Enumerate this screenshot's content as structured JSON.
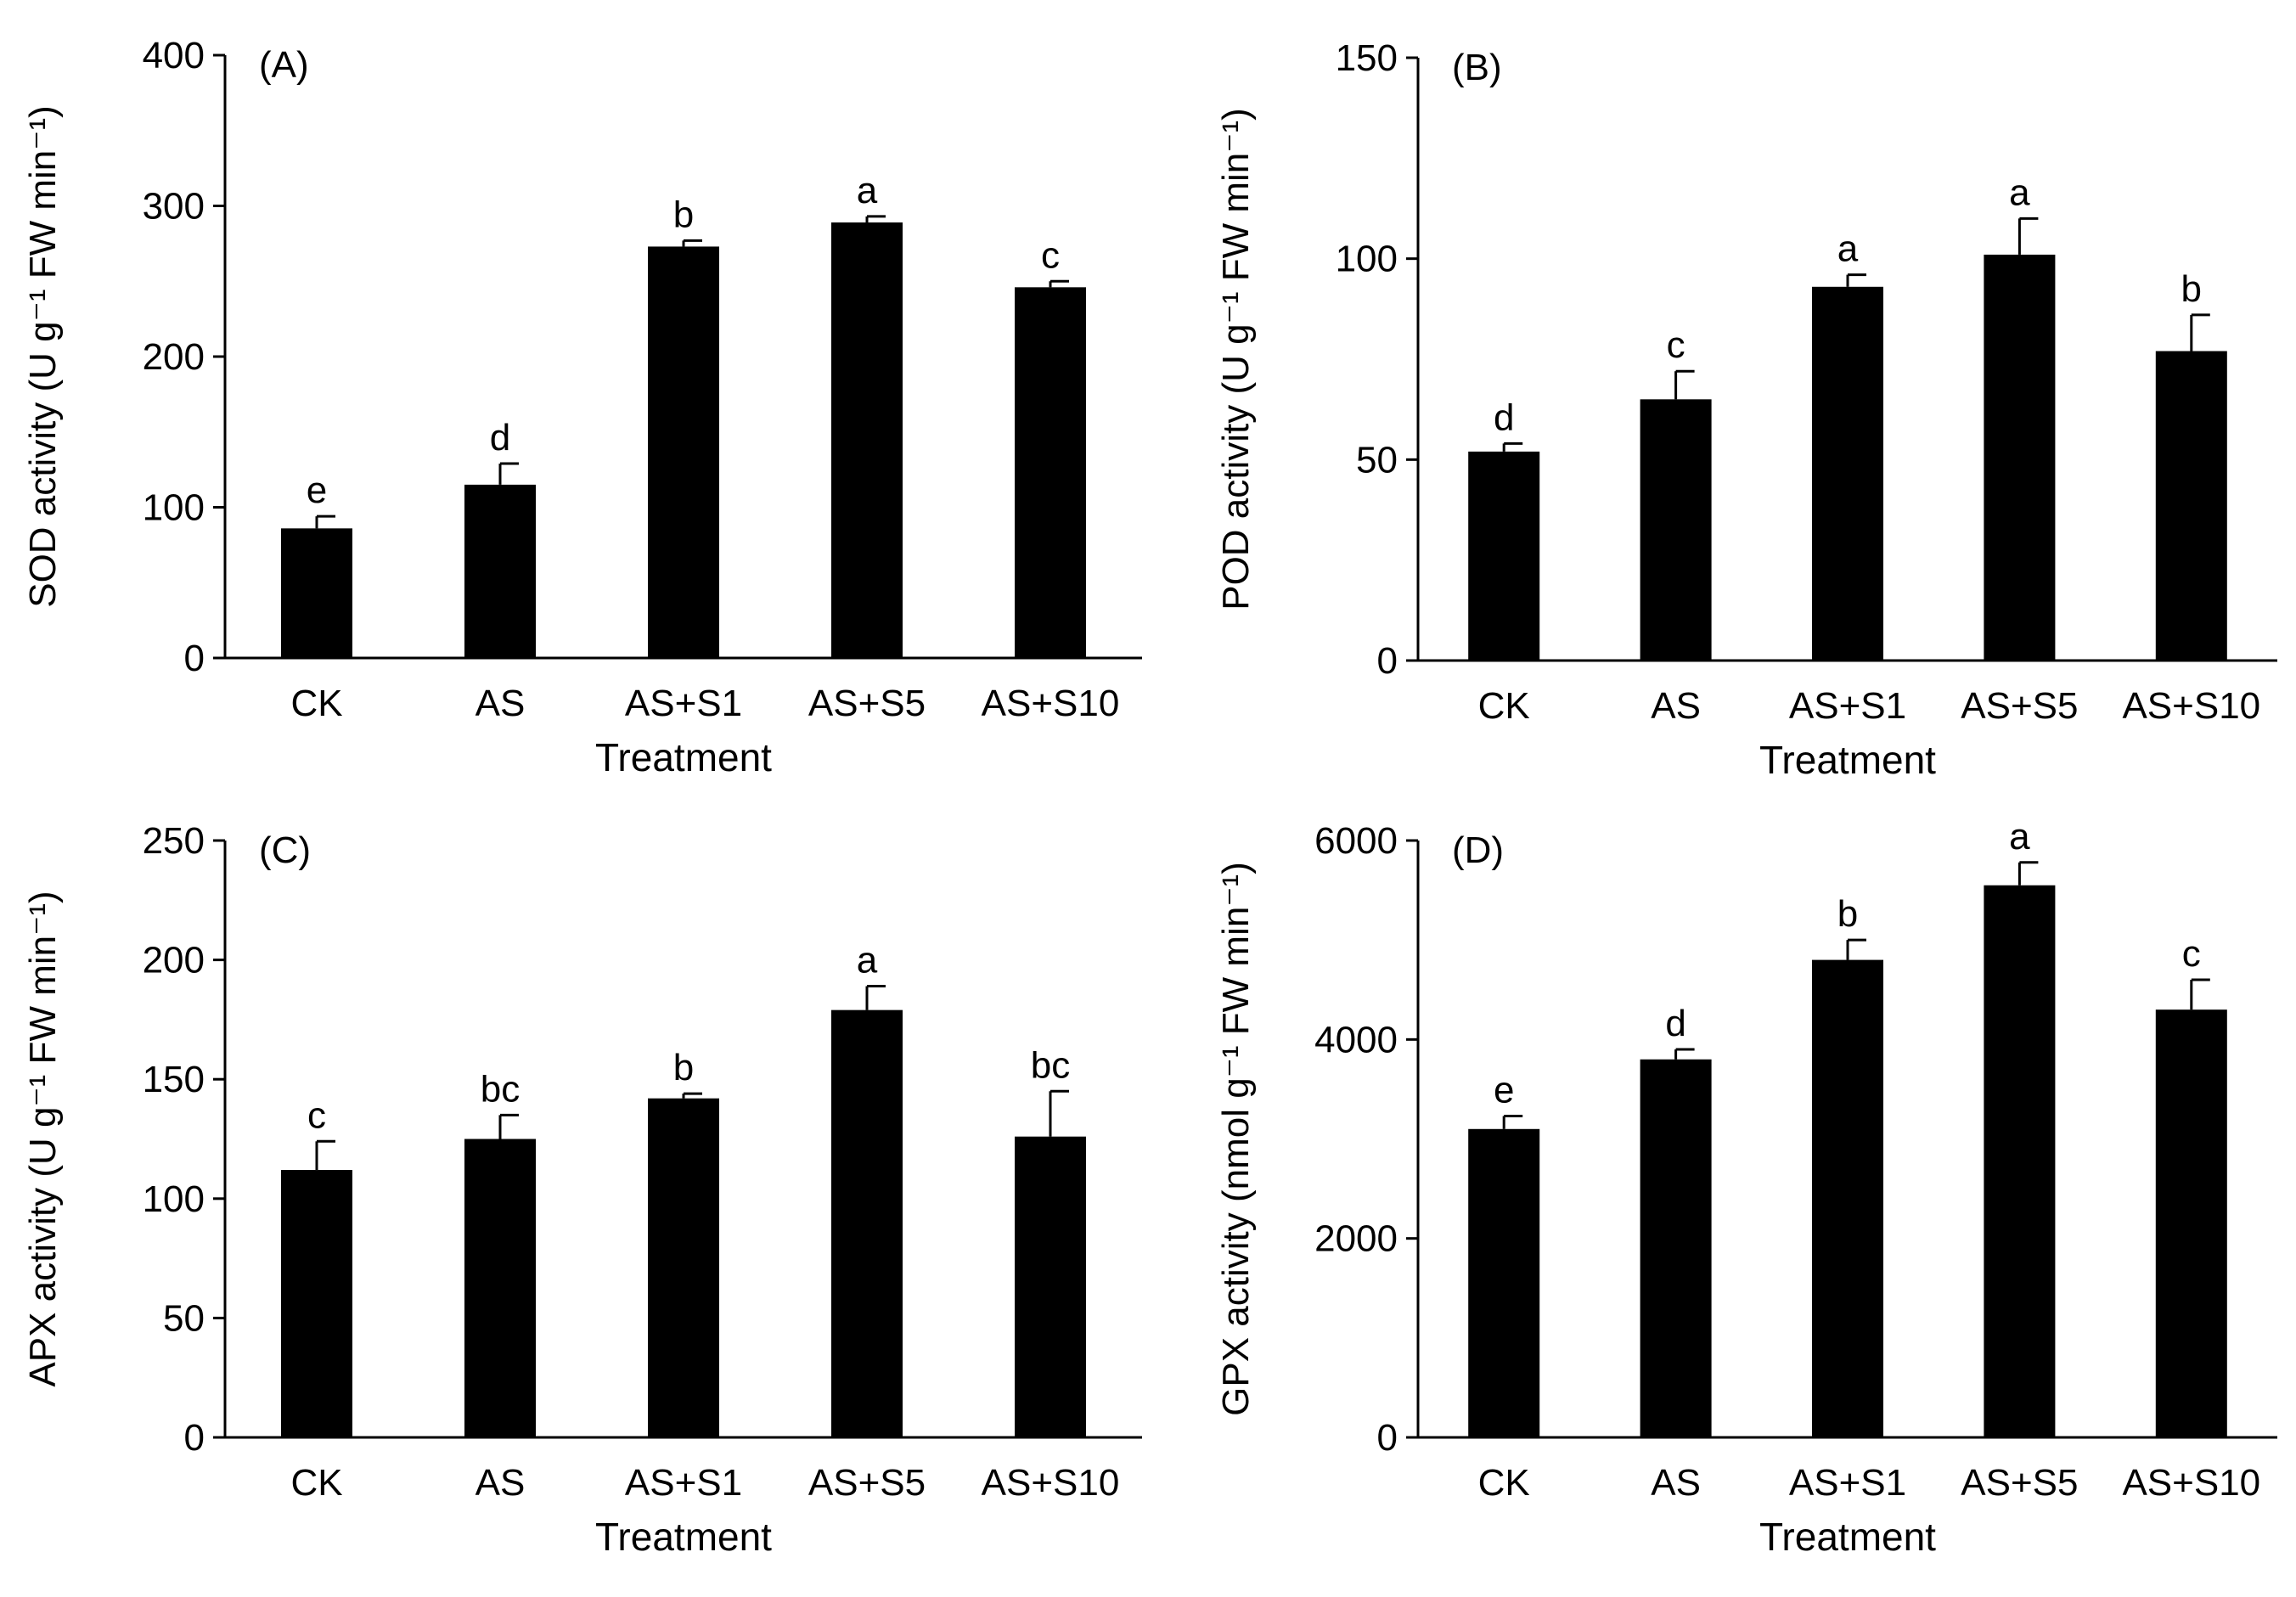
{
  "chart_data": [
    {
      "type": "bar",
      "panel_label": "(A)",
      "title": "",
      "categories": [
        "CK",
        "AS",
        "AS+S1",
        "AS+S5",
        "AS+S10"
      ],
      "values": [
        86,
        115,
        273,
        289,
        246
      ],
      "errors": [
        8,
        14,
        4,
        4,
        4
      ],
      "significance": [
        "e",
        "d",
        "b",
        "a",
        "c"
      ],
      "xlabel": "Treatment",
      "ylabel": "SOD activity (U g⁻¹ FW min⁻¹)",
      "ylim": [
        0,
        400
      ],
      "yticks": [
        "0",
        "100",
        "200",
        "300",
        "400"
      ],
      "grid": false
    },
    {
      "type": "bar",
      "panel_label": "(B)",
      "title": "",
      "categories": [
        "CK",
        "AS",
        "AS+S1",
        "AS+S5",
        "AS+S10"
      ],
      "values": [
        52,
        65,
        93,
        101,
        77
      ],
      "errors": [
        2,
        7,
        3,
        9,
        9
      ],
      "significance": [
        "d",
        "c",
        "a",
        "a",
        "b"
      ],
      "xlabel": "Treatment",
      "ylabel": "POD activity (U g⁻¹ FW min⁻¹)",
      "ylim": [
        0,
        150
      ],
      "yticks": [
        "0",
        "50",
        "100",
        "150"
      ],
      "grid": false
    },
    {
      "type": "bar",
      "panel_label": "(C)",
      "title": "",
      "categories": [
        "CK",
        "AS",
        "AS+S1",
        "AS+S5",
        "AS+S10"
      ],
      "values": [
        112,
        125,
        142,
        179,
        126
      ],
      "errors": [
        12,
        10,
        2,
        10,
        19
      ],
      "significance": [
        "c",
        "bc",
        "b",
        "a",
        "bc"
      ],
      "xlabel": "Treatment",
      "ylabel": "APX activity (U g⁻¹ FW min⁻¹)",
      "ylim": [
        0,
        250
      ],
      "yticks": [
        "0",
        "50",
        "100",
        "150",
        "200",
        "250"
      ],
      "grid": false
    },
    {
      "type": "bar",
      "panel_label": "(D)",
      "title": "",
      "categories": [
        "CK",
        "AS",
        "AS+S1",
        "AS+S5",
        "AS+S10"
      ],
      "values": [
        3100,
        3800,
        4800,
        5550,
        4300
      ],
      "errors": [
        130,
        100,
        200,
        230,
        300
      ],
      "significance": [
        "e",
        "d",
        "b",
        "a",
        "c"
      ],
      "xlabel": "Treatment",
      "ylabel": "GPX activity (nmol g⁻¹ FW min⁻¹)",
      "ylim": [
        0,
        6000
      ],
      "yticks": [
        "0",
        "2000",
        "4000",
        "6000"
      ],
      "grid": false
    }
  ]
}
